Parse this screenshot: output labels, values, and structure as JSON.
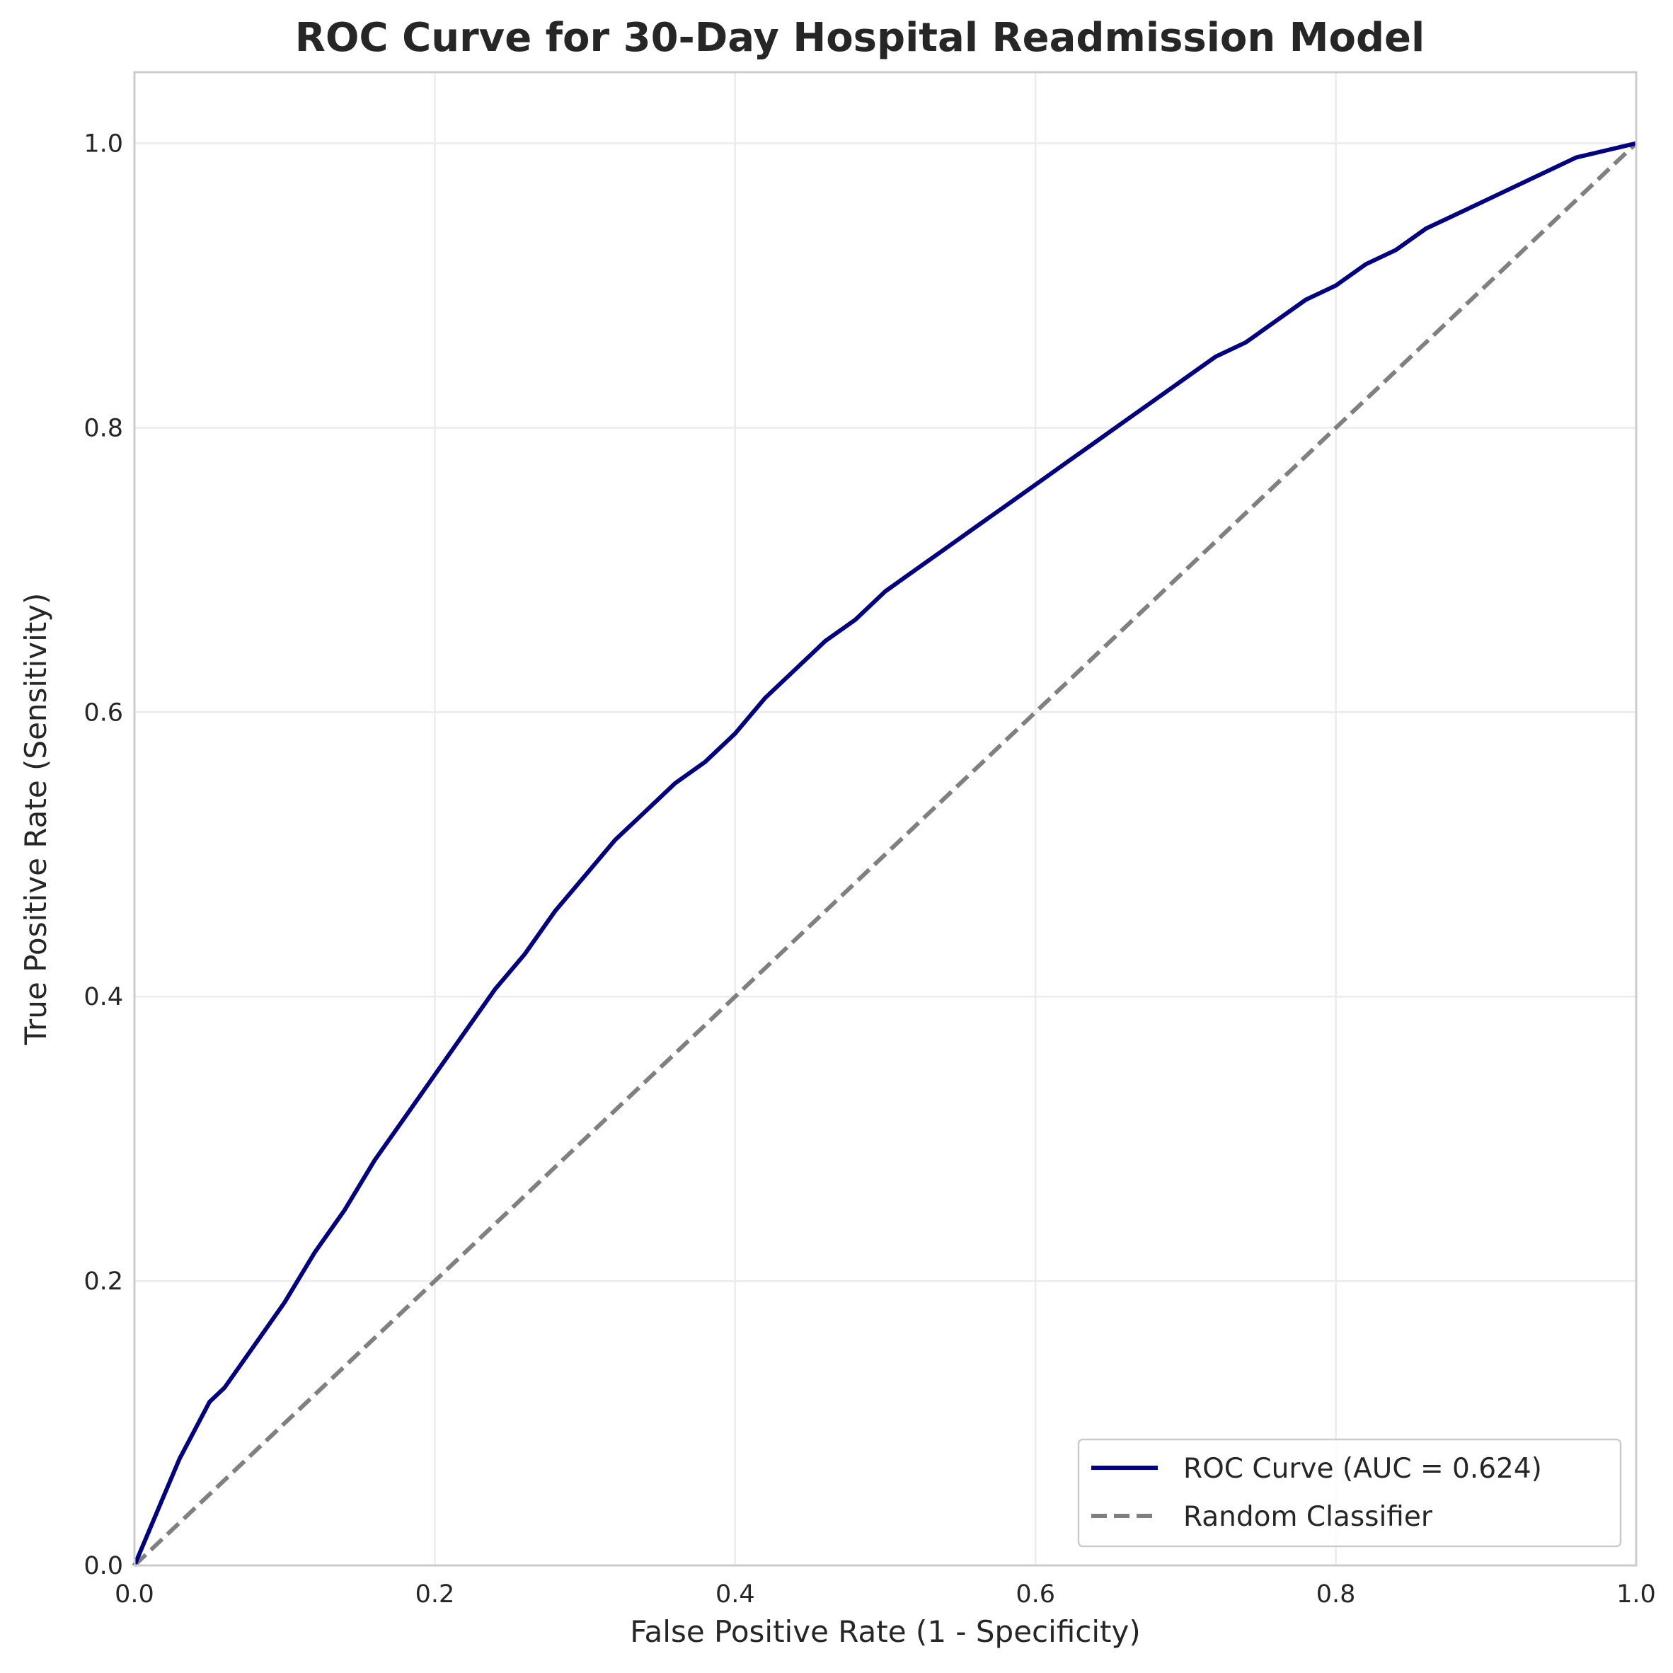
{
  "chart_data": {
    "type": "line",
    "title": "ROC Curve for 30-Day Hospital Readmission Model",
    "xlabel": "False Positive Rate (1 - Specificity)",
    "ylabel": "True Positive Rate (Sensitivity)",
    "xlim": [
      0.0,
      1.0
    ],
    "ylim": [
      0.0,
      1.05
    ],
    "x_ticks": [
      "0.0",
      "0.2",
      "0.4",
      "0.6",
      "0.8",
      "1.0"
    ],
    "y_ticks": [
      "0.0",
      "0.2",
      "0.4",
      "0.6",
      "0.8",
      "1.0"
    ],
    "grid": true,
    "legend_position": "lower-right",
    "series": [
      {
        "name": "ROC Curve (AUC = 0.624)",
        "color": "#000080",
        "style": "solid",
        "x": [
          0.0,
          0.01,
          0.02,
          0.03,
          0.04,
          0.05,
          0.06,
          0.08,
          0.1,
          0.12,
          0.14,
          0.16,
          0.18,
          0.2,
          0.22,
          0.24,
          0.26,
          0.28,
          0.3,
          0.32,
          0.34,
          0.36,
          0.38,
          0.4,
          0.42,
          0.44,
          0.46,
          0.48,
          0.5,
          0.52,
          0.54,
          0.56,
          0.58,
          0.6,
          0.62,
          0.64,
          0.66,
          0.68,
          0.7,
          0.72,
          0.74,
          0.76,
          0.78,
          0.8,
          0.82,
          0.84,
          0.86,
          0.88,
          0.9,
          0.92,
          0.94,
          0.96,
          0.98,
          1.0
        ],
        "y": [
          0.0,
          0.025,
          0.05,
          0.075,
          0.095,
          0.115,
          0.125,
          0.155,
          0.185,
          0.22,
          0.25,
          0.285,
          0.315,
          0.345,
          0.375,
          0.405,
          0.43,
          0.46,
          0.485,
          0.51,
          0.53,
          0.55,
          0.565,
          0.585,
          0.61,
          0.63,
          0.65,
          0.665,
          0.685,
          0.7,
          0.715,
          0.73,
          0.745,
          0.76,
          0.775,
          0.79,
          0.805,
          0.82,
          0.835,
          0.85,
          0.86,
          0.875,
          0.89,
          0.9,
          0.915,
          0.925,
          0.94,
          0.95,
          0.96,
          0.97,
          0.98,
          0.99,
          0.995,
          1.0
        ]
      },
      {
        "name": "Random Classifier",
        "color": "#808080",
        "style": "dashed",
        "x": [
          0.0,
          1.0
        ],
        "y": [
          0.0,
          1.0
        ]
      }
    ]
  }
}
